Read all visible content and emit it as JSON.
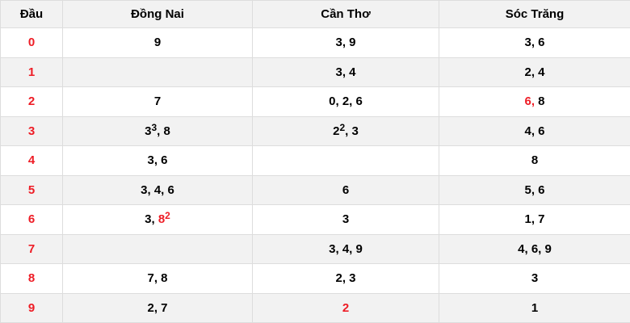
{
  "colors": {
    "red": "#ee1c25",
    "text": "#000000",
    "header_bg": "#f2f2f2",
    "stripe_bg": "#f2f2f2",
    "row_bg": "#ffffff",
    "border": "#dddddd"
  },
  "table": {
    "columns": [
      "Đầu",
      "Đồng Nai",
      "Cần Thơ",
      "Sóc Trăng"
    ],
    "rows": [
      {
        "head": "0",
        "cells": [
          [
            {
              "t": "9"
            }
          ],
          [
            {
              "t": "3, 9"
            }
          ],
          [
            {
              "t": "3, 6"
            }
          ]
        ]
      },
      {
        "head": "1",
        "cells": [
          [],
          [
            {
              "t": "3, 4"
            }
          ],
          [
            {
              "t": "2, 4"
            }
          ]
        ]
      },
      {
        "head": "2",
        "cells": [
          [
            {
              "t": "7"
            }
          ],
          [
            {
              "t": "0, 2, 6"
            }
          ],
          [
            {
              "t": "6,",
              "red": true
            },
            {
              "t": " 8"
            }
          ]
        ]
      },
      {
        "head": "3",
        "cells": [
          [
            {
              "t": "3"
            },
            {
              "t": "3",
              "sup": true
            },
            {
              "t": ", 8"
            }
          ],
          [
            {
              "t": "2"
            },
            {
              "t": "2",
              "sup": true
            },
            {
              "t": ", 3"
            }
          ],
          [
            {
              "t": "4, 6"
            }
          ]
        ]
      },
      {
        "head": "4",
        "cells": [
          [
            {
              "t": "3, 6"
            }
          ],
          [],
          [
            {
              "t": "8"
            }
          ]
        ]
      },
      {
        "head": "5",
        "cells": [
          [
            {
              "t": "3, 4, 6"
            }
          ],
          [
            {
              "t": "6"
            }
          ],
          [
            {
              "t": "5, 6"
            }
          ]
        ]
      },
      {
        "head": "6",
        "cells": [
          [
            {
              "t": "3, "
            },
            {
              "t": "8",
              "red": true
            },
            {
              "t": "2",
              "sup": true,
              "red": true
            }
          ],
          [
            {
              "t": "3"
            }
          ],
          [
            {
              "t": "1, 7"
            }
          ]
        ]
      },
      {
        "head": "7",
        "cells": [
          [],
          [
            {
              "t": "3, 4, 9"
            }
          ],
          [
            {
              "t": "4, 6, 9"
            }
          ]
        ]
      },
      {
        "head": "8",
        "cells": [
          [
            {
              "t": "7, 8"
            }
          ],
          [
            {
              "t": "2, 3"
            }
          ],
          [
            {
              "t": "3"
            }
          ]
        ]
      },
      {
        "head": "9",
        "cells": [
          [
            {
              "t": "2, 7"
            }
          ],
          [
            {
              "t": "2",
              "red": true
            }
          ],
          [
            {
              "t": "1"
            }
          ]
        ]
      }
    ]
  }
}
